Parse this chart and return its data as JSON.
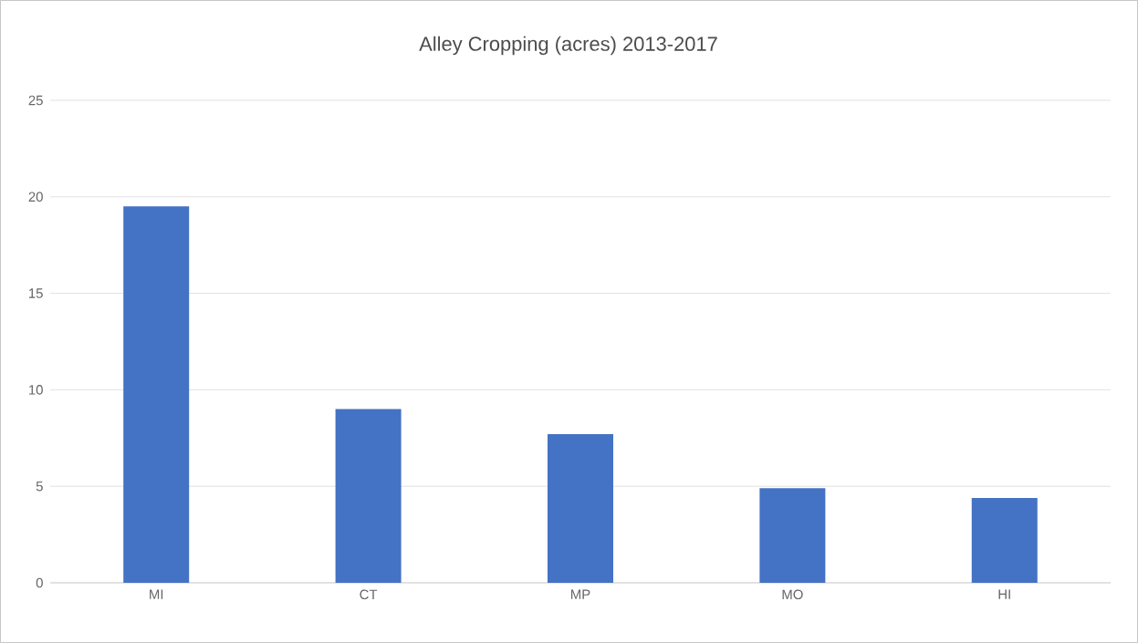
{
  "chart_data": {
    "type": "bar",
    "title": "Alley Cropping (acres) 2013-2017",
    "categories": [
      "MI",
      "CT",
      "MP",
      "MO",
      "HI"
    ],
    "values": [
      19.5,
      9.0,
      7.7,
      4.9,
      4.4
    ],
    "color": "#4472c4",
    "ylim": [
      0,
      25
    ],
    "yticks": [
      0,
      5,
      10,
      15,
      20,
      25
    ],
    "grid": "y"
  }
}
